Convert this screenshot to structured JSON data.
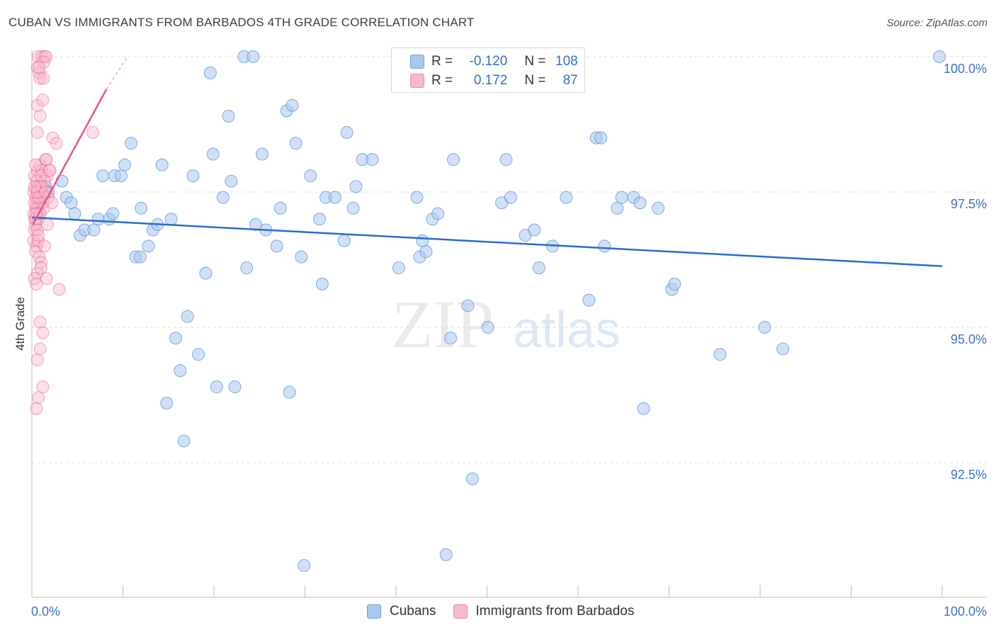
{
  "header": {
    "title": "CUBAN VS IMMIGRANTS FROM BARBADOS 4TH GRADE CORRELATION CHART",
    "source": "Source: ZipAtlas.com"
  },
  "watermark": {
    "zip": "ZIP",
    "atlas": "atlas"
  },
  "legend": {
    "rows": [
      {
        "r_label": "R = ",
        "r_value": "-0.120",
        "n_label": "N = ",
        "n_value": "108",
        "color": "#a9c8f0",
        "stroke": "#6f9fdd"
      },
      {
        "r_label": "R = ",
        "r_value": "0.172",
        "n_label": "N = ",
        "n_value": "87",
        "color": "#f9b9cc",
        "stroke": "#ec87a6"
      }
    ]
  },
  "bottom_legend": {
    "series1": "Cubans",
    "series2": "Immigrants from Barbados"
  },
  "chart_data": {
    "type": "scatter",
    "title": "CUBAN VS IMMIGRANTS FROM BARBADOS 4TH GRADE CORRELATION CHART",
    "xlabel": "",
    "ylabel": "4th Grade",
    "xlim": [
      0,
      100
    ],
    "ylim": [
      90.2,
      100.3
    ],
    "x_tick_labels": {
      "left": "0.0%",
      "right": "100.0%"
    },
    "y_ticks": [
      {
        "value": 100.0,
        "label": "100.0%"
      },
      {
        "value": 97.5,
        "label": "97.5%"
      },
      {
        "value": 95.0,
        "label": "95.0%"
      },
      {
        "value": 92.5,
        "label": "92.5%"
      }
    ],
    "colors": {
      "cubans": "#5b8fd6",
      "cubans_fill": "#a9c8f0",
      "barbados": "#e8608d",
      "barbados_fill": "#f9b9cc"
    },
    "series": [
      {
        "name": "Cubans",
        "trend": {
          "x": [
            0,
            100
          ],
          "y": [
            97.03,
            96.13
          ]
        },
        "points": [
          [
            1.5,
            97.6
          ],
          [
            1.8,
            97.5
          ],
          [
            3.3,
            97.7
          ],
          [
            3.8,
            97.4
          ],
          [
            4.3,
            97.3
          ],
          [
            4.7,
            97.1
          ],
          [
            5.3,
            96.7
          ],
          [
            5.8,
            96.8
          ],
          [
            6.8,
            96.8
          ],
          [
            7.3,
            97.0
          ],
          [
            7.8,
            97.8
          ],
          [
            8.5,
            97.0
          ],
          [
            8.9,
            97.1
          ],
          [
            9.1,
            97.8
          ],
          [
            9.8,
            97.8
          ],
          [
            10.2,
            98.0
          ],
          [
            10.9,
            98.4
          ],
          [
            11.4,
            96.3
          ],
          [
            11.9,
            96.3
          ],
          [
            12.0,
            97.2
          ],
          [
            12.8,
            96.5
          ],
          [
            13.3,
            96.8
          ],
          [
            13.8,
            96.9
          ],
          [
            14.3,
            98.0
          ],
          [
            14.8,
            93.6
          ],
          [
            15.3,
            97.0
          ],
          [
            15.8,
            94.8
          ],
          [
            16.3,
            94.2
          ],
          [
            16.7,
            92.9
          ],
          [
            17.1,
            95.2
          ],
          [
            17.7,
            97.8
          ],
          [
            18.3,
            94.5
          ],
          [
            19.1,
            96.0
          ],
          [
            19.6,
            99.7
          ],
          [
            19.9,
            98.2
          ],
          [
            20.3,
            93.9
          ],
          [
            21.0,
            97.4
          ],
          [
            21.6,
            98.9
          ],
          [
            21.9,
            97.7
          ],
          [
            22.3,
            93.9
          ],
          [
            23.3,
            100.0
          ],
          [
            23.6,
            96.1
          ],
          [
            24.3,
            100.0
          ],
          [
            24.6,
            96.9
          ],
          [
            25.3,
            98.2
          ],
          [
            25.7,
            96.8
          ],
          [
            26.9,
            96.5
          ],
          [
            27.3,
            97.2
          ],
          [
            28.0,
            99.0
          ],
          [
            28.3,
            93.8
          ],
          [
            28.6,
            99.1
          ],
          [
            29.0,
            98.4
          ],
          [
            29.6,
            96.3
          ],
          [
            29.9,
            90.6
          ],
          [
            30.6,
            97.8
          ],
          [
            31.6,
            97.0
          ],
          [
            31.9,
            95.8
          ],
          [
            32.3,
            97.4
          ],
          [
            33.3,
            97.4
          ],
          [
            34.3,
            96.6
          ],
          [
            34.6,
            98.6
          ],
          [
            35.3,
            97.2
          ],
          [
            35.6,
            97.6
          ],
          [
            36.3,
            98.1
          ],
          [
            37.4,
            98.1
          ],
          [
            40.3,
            96.1
          ],
          [
            42.3,
            97.4
          ],
          [
            42.6,
            96.3
          ],
          [
            42.9,
            96.6
          ],
          [
            43.3,
            96.4
          ],
          [
            44.0,
            97.0
          ],
          [
            44.6,
            97.1
          ],
          [
            45.5,
            90.8
          ],
          [
            46.0,
            94.8
          ],
          [
            46.3,
            98.1
          ],
          [
            47.9,
            95.4
          ],
          [
            48.4,
            92.2
          ],
          [
            50.1,
            95.0
          ],
          [
            51.6,
            97.3
          ],
          [
            52.1,
            98.1
          ],
          [
            52.6,
            97.4
          ],
          [
            54.2,
            96.7
          ],
          [
            55.2,
            96.8
          ],
          [
            55.7,
            96.1
          ],
          [
            57.2,
            96.5
          ],
          [
            58.7,
            97.4
          ],
          [
            61.2,
            95.5
          ],
          [
            62.0,
            98.5
          ],
          [
            62.5,
            98.5
          ],
          [
            62.9,
            96.5
          ],
          [
            64.3,
            97.2
          ],
          [
            64.8,
            97.4
          ],
          [
            66.1,
            97.4
          ],
          [
            66.8,
            97.3
          ],
          [
            67.2,
            93.5
          ],
          [
            68.8,
            97.2
          ],
          [
            70.3,
            95.7
          ],
          [
            70.6,
            95.8
          ],
          [
            75.6,
            94.5
          ],
          [
            80.5,
            95.0
          ],
          [
            82.5,
            94.6
          ],
          [
            99.7,
            100.0
          ]
        ]
      },
      {
        "name": "Immigrants from Barbados",
        "trend": {
          "x": [
            0.1,
            8.2
          ],
          "y": [
            96.9,
            99.4
          ]
        },
        "trend_dashed": {
          "x": [
            8.2,
            10.5
          ],
          "y": [
            99.4,
            100.0
          ]
        },
        "points": [
          [
            0.3,
            97.0
          ],
          [
            0.4,
            97.2
          ],
          [
            0.5,
            97.5
          ],
          [
            0.3,
            96.8
          ],
          [
            0.6,
            97.4
          ],
          [
            0.2,
            96.6
          ],
          [
            0.7,
            97.6
          ],
          [
            0.5,
            97.3
          ],
          [
            0.8,
            97.1
          ],
          [
            0.4,
            96.9
          ],
          [
            1.0,
            97.5
          ],
          [
            0.6,
            97.2
          ],
          [
            0.3,
            97.8
          ],
          [
            0.9,
            97.3
          ],
          [
            0.5,
            96.5
          ],
          [
            1.1,
            97.6
          ],
          [
            0.7,
            97.0
          ],
          [
            0.4,
            97.4
          ],
          [
            1.2,
            97.3
          ],
          [
            0.6,
            96.8
          ],
          [
            0.2,
            97.1
          ],
          [
            0.9,
            97.5
          ],
          [
            0.5,
            97.6
          ],
          [
            1.3,
            97.4
          ],
          [
            0.4,
            96.4
          ],
          [
            0.8,
            96.3
          ],
          [
            0.6,
            96.0
          ],
          [
            0.3,
            95.9
          ],
          [
            1.0,
            96.2
          ],
          [
            0.5,
            95.8
          ],
          [
            0.7,
            96.6
          ],
          [
            1.4,
            96.5
          ],
          [
            1.6,
            95.9
          ],
          [
            0.9,
            95.1
          ],
          [
            1.2,
            94.9
          ],
          [
            0.6,
            94.4
          ],
          [
            0.9,
            94.6
          ],
          [
            1.2,
            93.9
          ],
          [
            0.7,
            93.7
          ],
          [
            0.5,
            93.5
          ],
          [
            0.6,
            97.9
          ],
          [
            0.9,
            98.0
          ],
          [
            1.5,
            98.1
          ],
          [
            1.1,
            97.9
          ],
          [
            1.7,
            97.8
          ],
          [
            1.9,
            97.9
          ],
          [
            1.4,
            97.7
          ],
          [
            1.6,
            98.1
          ],
          [
            0.6,
            98.6
          ],
          [
            0.9,
            98.9
          ],
          [
            0.6,
            99.1
          ],
          [
            1.2,
            99.2
          ],
          [
            2.3,
            98.5
          ],
          [
            2.7,
            98.4
          ],
          [
            0.6,
            99.8
          ],
          [
            0.8,
            99.7
          ],
          [
            0.9,
            99.6
          ],
          [
            1.3,
            99.6
          ],
          [
            0.7,
            100.0
          ],
          [
            1.1,
            100.0
          ],
          [
            1.4,
            100.0
          ],
          [
            1.6,
            100.0
          ],
          [
            1.3,
            99.9
          ],
          [
            0.8,
            99.8
          ],
          [
            0.5,
            97.7
          ],
          [
            0.9,
            97.6
          ],
          [
            0.3,
            97.3
          ],
          [
            1.0,
            97.8
          ],
          [
            1.3,
            97.2
          ],
          [
            0.2,
            97.5
          ],
          [
            1.8,
            97.4
          ],
          [
            0.4,
            97.0
          ],
          [
            0.7,
            96.7
          ],
          [
            0.8,
            97.4
          ],
          [
            0.6,
            97.5
          ],
          [
            0.9,
            97.1
          ],
          [
            1.1,
            97.6
          ],
          [
            0.3,
            97.6
          ],
          [
            1.5,
            97.5
          ],
          [
            0.5,
            97.1
          ],
          [
            3.0,
            95.7
          ],
          [
            6.7,
            98.6
          ],
          [
            2.0,
            97.9
          ],
          [
            1.7,
            96.9
          ],
          [
            0.4,
            98.0
          ],
          [
            2.2,
            97.3
          ],
          [
            1.0,
            96.1
          ]
        ]
      }
    ]
  }
}
